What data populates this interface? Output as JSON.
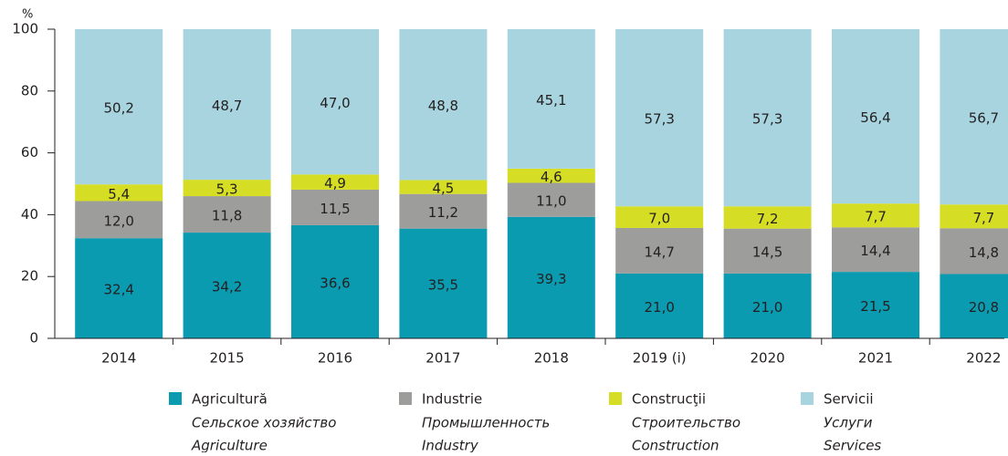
{
  "chart_data": {
    "type": "stacked_bar",
    "y_unit": "%",
    "categories": [
      "2014",
      "2015",
      "2016",
      "2017",
      "2018",
      "2019 (i)",
      "2020",
      "2021",
      "2022"
    ],
    "series": [
      {
        "name": "Agricultură",
        "subtitles": [
          "Сельское хозяйство",
          "Agriculture"
        ],
        "color": "#0a9bb1",
        "values": [
          32.4,
          34.2,
          36.6,
          35.5,
          39.3,
          21.0,
          21.0,
          21.5,
          20.8
        ],
        "value_labels": [
          "32,4",
          "34,2",
          "36,6",
          "35,5",
          "39,3",
          "21,0",
          "21,0",
          "21,5",
          "20,8"
        ]
      },
      {
        "name": "Industrie",
        "subtitles": [
          "Промышленность",
          "Industry"
        ],
        "color": "#9d9d9c",
        "values": [
          12.0,
          11.8,
          11.5,
          11.2,
          11.0,
          14.7,
          14.5,
          14.4,
          14.8
        ],
        "value_labels": [
          "12,0",
          "11,8",
          "11,5",
          "11,2",
          "11,0",
          "14,7",
          "14,5",
          "14,4",
          "14,8"
        ]
      },
      {
        "name": "Construcţii",
        "subtitles": [
          "Строительство",
          "Construction"
        ],
        "color": "#d5de24",
        "values": [
          5.4,
          5.3,
          4.9,
          4.5,
          4.6,
          7.0,
          7.2,
          7.7,
          7.7
        ],
        "value_labels": [
          "5,4",
          "5,3",
          "4,9",
          "4,5",
          "4,6",
          "7,0",
          "7,2",
          "7,7",
          "7,7"
        ]
      },
      {
        "name": "Servicii",
        "subtitles": [
          "Услуги",
          "Services"
        ],
        "color": "#a7d4df",
        "values": [
          50.2,
          48.7,
          47.0,
          48.8,
          45.1,
          57.3,
          57.3,
          56.4,
          56.7
        ],
        "value_labels": [
          "50,2",
          "48,7",
          "47,0",
          "48,8",
          "45,1",
          "57,3",
          "57,3",
          "56,4",
          "56,7"
        ]
      }
    ],
    "ylim": [
      0,
      100
    ],
    "yticks": [
      0,
      20,
      40,
      60,
      80,
      100
    ],
    "legend": "bottom"
  }
}
